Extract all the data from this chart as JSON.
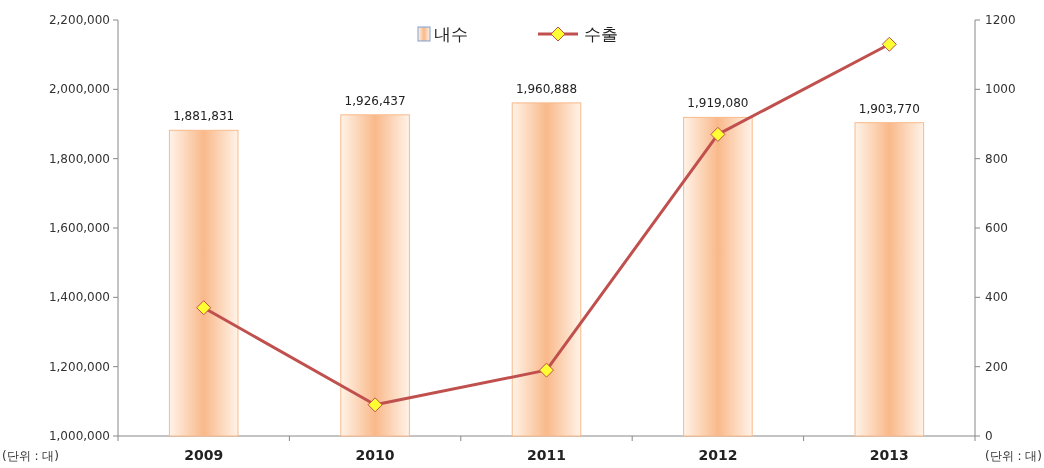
{
  "chart_data": {
    "type": "bar",
    "categories": [
      "2009",
      "2010",
      "2011",
      "2012",
      "2013"
    ],
    "series": [
      {
        "name": "내수",
        "color": "#f9b98a",
        "values": [
          1881831,
          1926437,
          1960888,
          1919080,
          1903770
        ],
        "value_labels": [
          "1,881,831",
          "1,926,437",
          "1,960,888",
          "1,919,080",
          "1,903,770"
        ]
      },
      {
        "name": "수출",
        "type": "line",
        "axis": "y2",
        "color": "#c0504d",
        "marker": "diamond",
        "values": [
          370,
          90,
          190,
          870,
          1130
        ]
      }
    ],
    "ylim": [
      1000000,
      2200000
    ],
    "yticks": [
      {
        "value": 1000000,
        "label": "1,000,000"
      },
      {
        "value": 1200000,
        "label": "1,200,000"
      },
      {
        "value": 1400000,
        "label": "1,400,000"
      },
      {
        "value": 1600000,
        "label": "1,600,000"
      },
      {
        "value": 1800000,
        "label": "1,800,000"
      },
      {
        "value": 2000000,
        "label": "2,000,000"
      },
      {
        "value": 2200000,
        "label": "2,200,000"
      }
    ],
    "y2lim": [
      0,
      1200
    ],
    "y2ticks": [
      0,
      200,
      400,
      600,
      800,
      1000,
      1200
    ],
    "legend": "top",
    "annotations": [
      "(단위 : 대)",
      "(단위 : 대)"
    ]
  }
}
